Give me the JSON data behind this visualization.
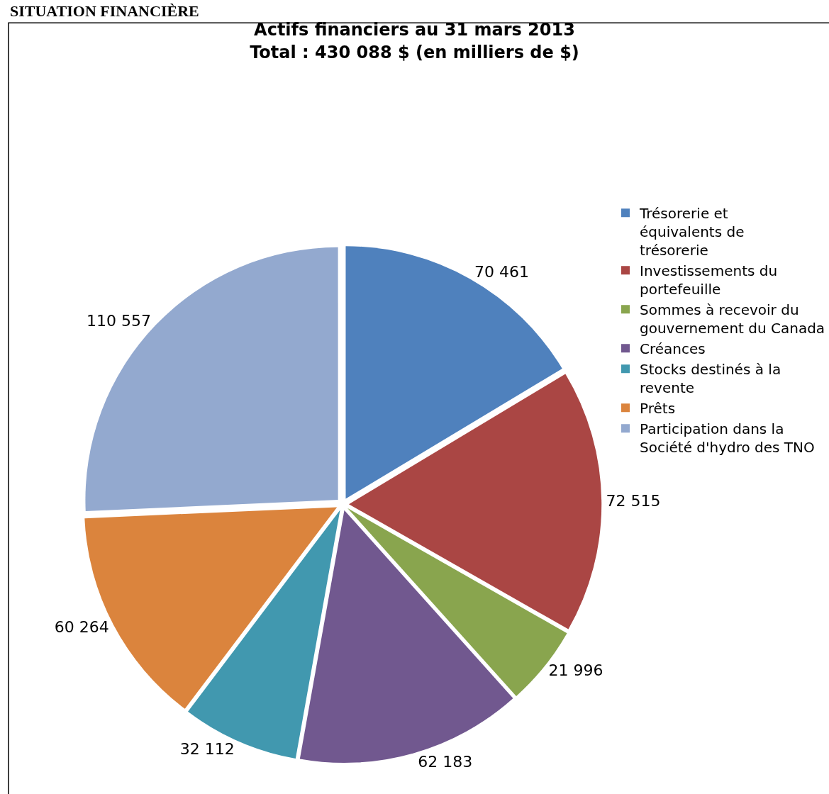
{
  "chart_data": {
    "type": "pie",
    "title": "Actifs financiers au 31 mars 2013",
    "subtitle": "Total : 430 088 $ (en milliers de $)",
    "annotations": [
      "SITUATION FINANCIÈRE"
    ],
    "categories": [
      "Trésorerie et équivalents de trésorerie",
      "Investissements du portefeuille",
      "Sommes à recevoir du gouvernement du Canada",
      "Créances",
      "Stocks destinés à la revente",
      "Prêts",
      "Participation dans la Société d'hydro des TNO"
    ],
    "values": [
      70461,
      72515,
      21996,
      62183,
      32112,
      60264,
      110557
    ],
    "value_labels": [
      "70 461",
      "72 515",
      "21 996",
      "62 183",
      "32 112",
      "60 264",
      "110 557"
    ],
    "colors": [
      "#4f81bd",
      "#aa4644",
      "#89a54e",
      "#71588f",
      "#4198af",
      "#db843d",
      "#93a9cf"
    ],
    "legend": "right"
  }
}
